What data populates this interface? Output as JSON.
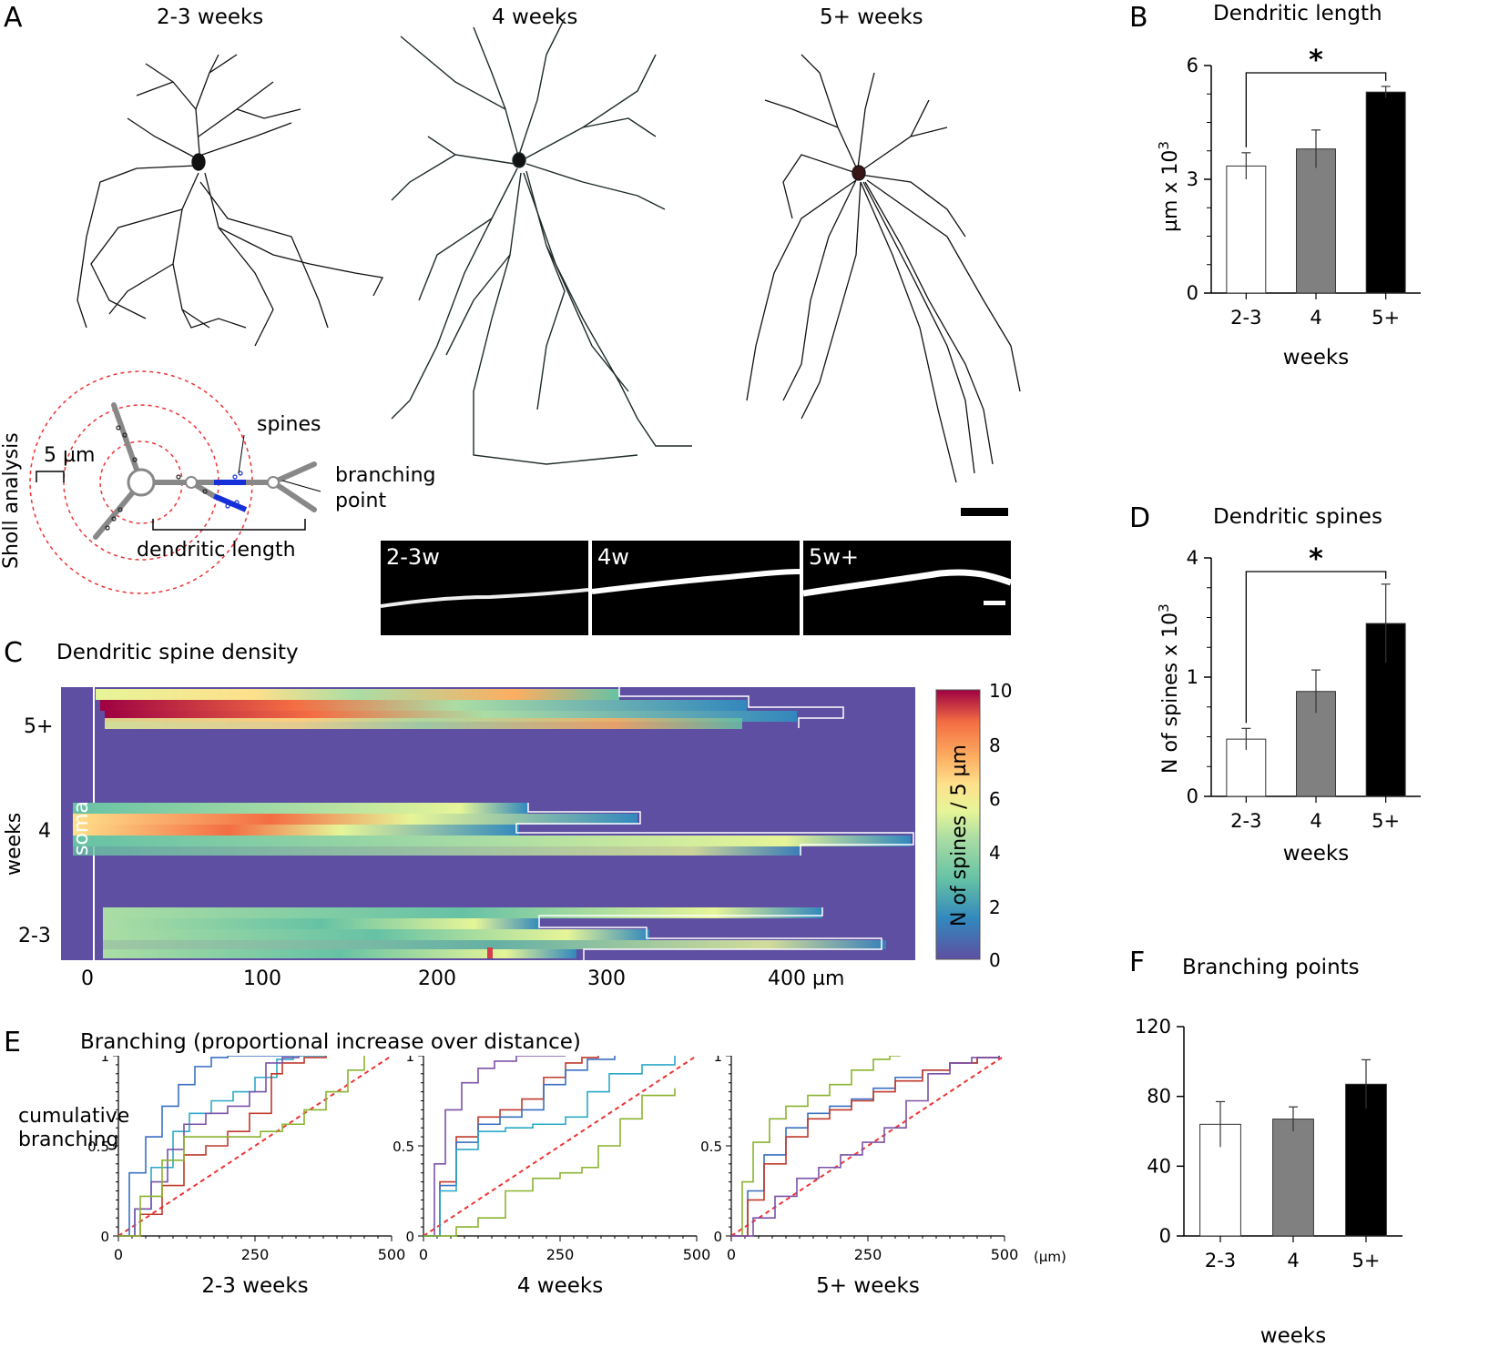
{
  "panelA": {
    "letter": "A",
    "group_labels": [
      "2-3 weeks",
      "4 weeks",
      "5+ weeks"
    ],
    "sholl": {
      "side_label": "Sholl analysis",
      "scale": "5 µm",
      "spines": "spines",
      "branching_1": "branching",
      "branching_2": "point",
      "dendritic_length": "dendritic length"
    },
    "micro_labels": [
      "2-3w",
      "4w",
      "5w+"
    ]
  },
  "panelB": {
    "letter": "B",
    "sig": "*",
    "ylabel": "µm x 10",
    "ylabel_sup": "3"
  },
  "panelC": {
    "letter": "C",
    "title": "Dendritic spine density",
    "soma": "soma",
    "ylabel": "weeks",
    "row_labels": [
      "5+",
      "4",
      "2-3"
    ],
    "x_ticks": [
      "0",
      "100",
      "200",
      "300",
      "400 µm"
    ],
    "colorbar_label": "N of spines / 5 µm",
    "colorbar_ticks": [
      "10",
      "8",
      "6",
      "4",
      "2",
      "0"
    ]
  },
  "panelD": {
    "letter": "D",
    "sig": "*",
    "ylabel": "N of spines x 10",
    "ylabel_sup": "3"
  },
  "panelE": {
    "letter": "E",
    "title": "Branching (proportional increase over distance)",
    "ylabel1": "cumulative",
    "ylabel2": "branching",
    "y_ticks": [
      "1",
      "0.5",
      "0"
    ],
    "x_ticks": [
      "0",
      "250",
      "500"
    ],
    "unit": "(µm)",
    "sub_labels": [
      "2-3   weeks",
      "4  weeks",
      "5+ weeks"
    ]
  },
  "panelF": {
    "letter": "F"
  },
  "chart_data": [
    {
      "type": "bar",
      "id": "B",
      "title": "Dendritic length",
      "categories": [
        "2-3",
        "4",
        "5+"
      ],
      "values": [
        3.35,
        3.8,
        5.3
      ],
      "errors": [
        0.35,
        0.5,
        0.15
      ],
      "colors": [
        "#ffffff",
        "#808080",
        "#000000"
      ],
      "xlabel": "weeks",
      "ylabel": "µm x 10³",
      "ylim": [
        0,
        6
      ],
      "yticks": [
        0,
        3,
        6
      ]
    },
    {
      "type": "bar",
      "id": "D",
      "title": "Dendritic spines",
      "categories": [
        "2-3",
        "4",
        "5+"
      ],
      "values": [
        0.48,
        0.88,
        1.45
      ],
      "errors": [
        0.09,
        0.18,
        0.33
      ],
      "colors": [
        "#ffffff",
        "#808080",
        "#000000"
      ],
      "xlabel": "weeks",
      "ylabel": "N of spines x 10³",
      "ylim": [
        0,
        2
      ],
      "yticks": [
        0,
        1,
        4
      ],
      "ytick_labels": [
        "0",
        "1",
        "4"
      ]
    },
    {
      "type": "bar",
      "id": "F",
      "title": "Branching points",
      "categories": [
        "2-3",
        "4",
        "5+"
      ],
      "values": [
        64,
        67,
        87
      ],
      "errors": [
        13,
        7,
        14
      ],
      "colors": [
        "#ffffff",
        "#808080",
        "#000000"
      ],
      "xlabel": "weeks",
      "ylabel": "",
      "ylim": [
        0,
        120
      ],
      "yticks": [
        0,
        40,
        80,
        120
      ]
    },
    {
      "type": "line",
      "id": "E",
      "title": "Branching (proportional increase over distance)",
      "xlabel": "(µm)",
      "ylabel": "cumulative branching",
      "xlim": [
        0,
        500
      ],
      "ylim": [
        0,
        1
      ],
      "panels": [
        {
          "label": "2-3 weeks",
          "series": [
            {
              "name": "blue",
              "color": "#3a6fc4",
              "x": [
                0,
                20,
                50,
                80,
                110,
                140,
                170,
                200,
                240,
                280,
                320,
                380
              ],
              "y": [
                0,
                0.35,
                0.55,
                0.72,
                0.84,
                0.94,
                0.99,
                1,
                1,
                1,
                1,
                1
              ]
            },
            {
              "name": "cyan",
              "color": "#2aa9c8",
              "x": [
                0,
                30,
                60,
                100,
                130,
                170,
                210,
                250,
                290,
                320,
                380
              ],
              "y": [
                0,
                0.15,
                0.38,
                0.58,
                0.68,
                0.75,
                0.8,
                0.88,
                0.98,
                1,
                1
              ]
            },
            {
              "name": "red",
              "color": "#c0392b",
              "x": [
                0,
                40,
                80,
                120,
                160,
                200,
                240,
                280,
                300,
                340,
                380
              ],
              "y": [
                0,
                0.12,
                0.28,
                0.45,
                0.5,
                0.58,
                0.68,
                0.9,
                0.96,
                0.99,
                1
              ]
            },
            {
              "name": "purple",
              "color": "#7b52a8",
              "x": [
                0,
                30,
                60,
                90,
                120,
                160,
                200,
                240,
                270,
                300,
                330
              ],
              "y": [
                0,
                0.15,
                0.3,
                0.48,
                0.62,
                0.68,
                0.72,
                0.8,
                0.96,
                0.99,
                1
              ]
            },
            {
              "name": "green",
              "color": "#8ab32e",
              "x": [
                0,
                40,
                80,
                120,
                200,
                260,
                300,
                340,
                380,
                420,
                450
              ],
              "y": [
                0,
                0.22,
                0.42,
                0.55,
                0.55,
                0.58,
                0.62,
                0.7,
                0.8,
                0.92,
                1
              ]
            }
          ]
        },
        {
          "label": "4 weeks",
          "series": [
            {
              "name": "purple",
              "color": "#7b52a8",
              "x": [
                0,
                20,
                40,
                70,
                100,
                130,
                170,
                210,
                260
              ],
              "y": [
                0,
                0.4,
                0.7,
                0.85,
                0.93,
                0.97,
                1,
                1,
                1
              ]
            },
            {
              "name": "red",
              "color": "#c0392b",
              "x": [
                0,
                30,
                60,
                100,
                140,
                180,
                220,
                260,
                290,
                320
              ],
              "y": [
                0,
                0.3,
                0.55,
                0.66,
                0.7,
                0.76,
                0.88,
                0.96,
                0.99,
                1
              ]
            },
            {
              "name": "blue",
              "color": "#3a6fc4",
              "x": [
                0,
                30,
                60,
                100,
                140,
                180,
                220,
                260,
                300,
                350
              ],
              "y": [
                0,
                0.28,
                0.52,
                0.62,
                0.66,
                0.7,
                0.84,
                0.92,
                0.98,
                1
              ]
            },
            {
              "name": "cyan",
              "color": "#2aa9c8",
              "x": [
                0,
                30,
                60,
                100,
                150,
                200,
                260,
                300,
                340,
                400,
                460
              ],
              "y": [
                0,
                0.25,
                0.48,
                0.58,
                0.6,
                0.62,
                0.66,
                0.8,
                0.9,
                0.95,
                1
              ]
            },
            {
              "name": "green",
              "color": "#8ab32e",
              "x": [
                0,
                60,
                100,
                150,
                200,
                250,
                290,
                320,
                360,
                400,
                460
              ],
              "y": [
                0,
                0.05,
                0.1,
                0.25,
                0.32,
                0.35,
                0.38,
                0.5,
                0.65,
                0.78,
                0.82
              ]
            }
          ]
        },
        {
          "label": "5+ weeks",
          "series": [
            {
              "name": "green",
              "color": "#8ab32e",
              "x": [
                0,
                20,
                40,
                70,
                100,
                140,
                180,
                220,
                260,
                290,
                310
              ],
              "y": [
                0,
                0.3,
                0.52,
                0.65,
                0.72,
                0.78,
                0.84,
                0.92,
                0.98,
                1,
                1
              ]
            },
            {
              "name": "blue",
              "color": "#3a6fc4",
              "x": [
                0,
                30,
                60,
                100,
                140,
                180,
                220,
                260,
                300,
                350,
                400,
                450,
                490
              ],
              "y": [
                0,
                0.25,
                0.45,
                0.6,
                0.68,
                0.72,
                0.76,
                0.82,
                0.88,
                0.92,
                0.96,
                0.99,
                1
              ]
            },
            {
              "name": "red",
              "color": "#c0392b",
              "x": [
                0,
                30,
                60,
                100,
                140,
                180,
                220,
                260,
                300,
                350,
                400,
                450,
                490
              ],
              "y": [
                0,
                0.2,
                0.4,
                0.55,
                0.65,
                0.7,
                0.75,
                0.8,
                0.86,
                0.92,
                0.96,
                0.99,
                1
              ]
            },
            {
              "name": "purple",
              "color": "#7b52a8",
              "x": [
                0,
                40,
                80,
                120,
                160,
                200,
                240,
                280,
                320,
                360,
                400,
                440,
                490
              ],
              "y": [
                0,
                0.1,
                0.22,
                0.32,
                0.38,
                0.45,
                0.52,
                0.6,
                0.75,
                0.9,
                0.96,
                0.99,
                1
              ]
            }
          ]
        }
      ]
    }
  ]
}
